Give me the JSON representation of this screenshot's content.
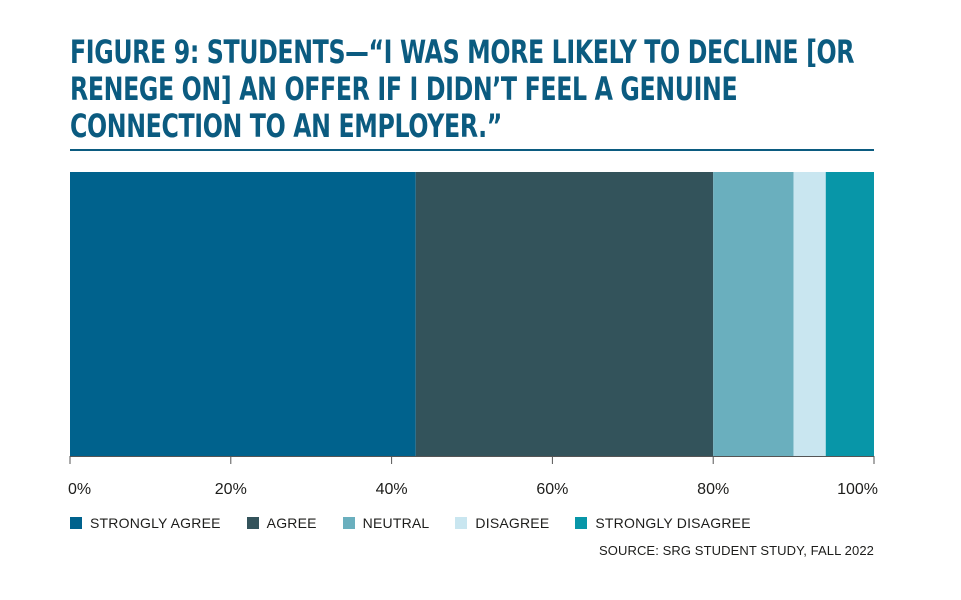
{
  "title": "FIGURE 9: STUDENTS—“I WAS MORE LIKELY TO DECLINE [OR RENEGE ON] AN OFFER IF I DIDN’T FEEL A GENUINE CONNECTION TO AN EMPLOYER.”",
  "source": "SOURCE: SRG STUDENT STUDY, FALL 2022",
  "chart_data": {
    "type": "bar",
    "orientation": "horizontal",
    "stacked": true,
    "title": "FIGURE 9: STUDENTS—“I WAS MORE LIKELY TO DECLINE [OR RENEGE ON] AN OFFER IF I DIDN’T FEEL A GENUINE CONNECTION TO AN EMPLOYER.”",
    "xlabel": "",
    "ylabel": "",
    "xlim": [
      0,
      100
    ],
    "ticks": [
      "0%",
      "20%",
      "40%",
      "60%",
      "80%",
      "100%"
    ],
    "tick_values": [
      0,
      20,
      40,
      60,
      80,
      100
    ],
    "grid": false,
    "legend_position": "bottom-left",
    "series": [
      {
        "name": "STRONGLY AGREE",
        "value": 43,
        "color": "#00628d"
      },
      {
        "name": "AGREE",
        "value": 37,
        "color": "#33535b"
      },
      {
        "name": "NEUTRAL",
        "value": 10,
        "color": "#6aafbe"
      },
      {
        "name": "DISAGREE",
        "value": 4,
        "color": "#c9e6f0"
      },
      {
        "name": "STRONGLY DISAGREE",
        "value": 6,
        "color": "#0896a8"
      }
    ]
  }
}
